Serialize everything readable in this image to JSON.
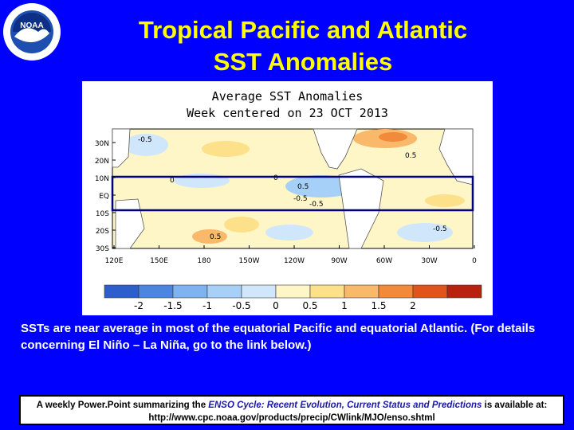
{
  "slide": {
    "title_line1": "Tropical Pacific and Atlantic",
    "title_line2": "SST Anomalies",
    "logo_text": "NOAA",
    "body": "SSTs are near average in most of the equatorial Pacific and equatorial Atlantic. (For details concerning El Niño – La Niña, go to the link below.)",
    "footer_pre": "A weekly Power.Point summarizing the ",
    "footer_em": "ENSO Cycle: Recent Evolution, Current Status and Predictions",
    "footer_post": " is available at:",
    "footer_url": "http://www.cpc.noaa.gov/products/precip/CWlink/MJO/enso.shtml"
  },
  "map": {
    "title_line1": "Average SST Anomalies",
    "title_line2": "Week centered on 23 OCT 2013",
    "lat_labels": [
      "30N",
      "20N",
      "10N",
      "EQ",
      "10S",
      "20S",
      "30S"
    ],
    "lon_labels": [
      "120E",
      "150E",
      "180",
      "150W",
      "120W",
      "90W",
      "60W",
      "30W",
      "0"
    ],
    "contour_labels": [
      "-0.5",
      "0.5",
      "0",
      "-0.5",
      "0.5",
      "-0.5",
      "0.5",
      "-0.5",
      "0"
    ],
    "colorbar": {
      "colors": [
        "#2c5fcc",
        "#4a86e0",
        "#7cb3f0",
        "#a6d0f8",
        "#cfe6fb",
        "#fff6c8",
        "#fde08a",
        "#f9b86a",
        "#f28a3c",
        "#e0541c",
        "#b8210e"
      ],
      "tick_labels": [
        "-2",
        "-1.5",
        "-1",
        "-0.5",
        "0",
        "0.5",
        "1",
        "1.5",
        "2"
      ]
    }
  }
}
